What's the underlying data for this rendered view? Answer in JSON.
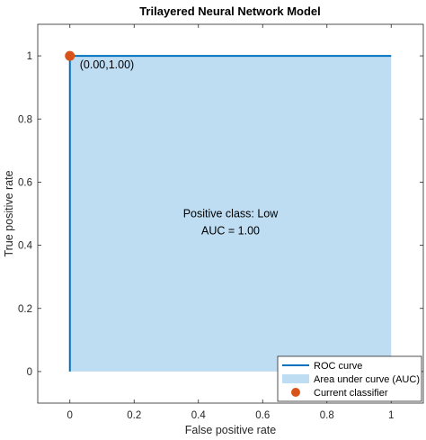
{
  "chart_data": {
    "type": "area",
    "title": "Trilayered Neural Network Model",
    "xlabel": "False positive rate",
    "ylabel": "True positive rate",
    "xlim": [
      -0.1,
      1.1
    ],
    "ylim": [
      -0.1,
      1.1
    ],
    "xticks": [
      0,
      0.2,
      0.4,
      0.6,
      0.8,
      1
    ],
    "yticks": [
      0,
      0.2,
      0.4,
      0.6,
      0.8,
      1
    ],
    "xtick_labels": [
      "0",
      "0.2",
      "0.4",
      "0.6",
      "0.8",
      "1"
    ],
    "ytick_labels": [
      "0",
      "0.2",
      "0.4",
      "0.6",
      "0.8",
      "1"
    ],
    "grid": false,
    "series": [
      {
        "name": "ROC curve",
        "kind": "line",
        "color": "#0072BD",
        "x": [
          0,
          0,
          1
        ],
        "y": [
          0,
          1,
          1
        ]
      },
      {
        "name": "Area under curve (AUC)",
        "kind": "area",
        "color": "#BFDDF2",
        "x": [
          0,
          0,
          1,
          1
        ],
        "y": [
          0,
          1,
          1,
          0
        ]
      },
      {
        "name": "Current classifier",
        "kind": "scatter",
        "color": "#D95319",
        "x": [
          0
        ],
        "y": [
          1
        ]
      }
    ],
    "annotations": {
      "point_label": "(0.00,1.00)",
      "positive_class": "Positive class: Low",
      "auc": "AUC = 1.00"
    },
    "legend_position": "bottom-right"
  }
}
